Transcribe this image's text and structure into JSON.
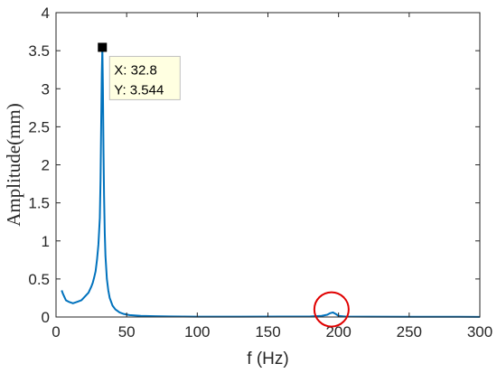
{
  "chart_data": {
    "type": "line",
    "xlabel": "f (Hz)",
    "ylabel": "Amplitude(mm)",
    "xlim": [
      0,
      300
    ],
    "ylim": [
      0,
      4
    ],
    "x_ticks": [
      0,
      50,
      100,
      150,
      200,
      250,
      300
    ],
    "y_ticks": [
      0,
      0.5,
      1,
      1.5,
      2,
      2.5,
      3,
      3.5,
      4
    ],
    "y_tick_labels": [
      "0",
      "0.5",
      "1",
      "1.5",
      "2",
      "2.5",
      "3",
      "3.5",
      "4"
    ],
    "grid": false,
    "line_color": "#0072BD",
    "series": [
      {
        "x": [
          4,
          5,
          7,
          9,
          12,
          15,
          18,
          21,
          23,
          25,
          26,
          27,
          28,
          29,
          30,
          31,
          31.5,
          32,
          32.4,
          32.8,
          33.2,
          33.6,
          34,
          34.5,
          35,
          36,
          37,
          38,
          40,
          42,
          45,
          48,
          52,
          60,
          70,
          80,
          100,
          130,
          160,
          180,
          188,
          192,
          194,
          196,
          198,
          200,
          205,
          220,
          250,
          300
        ],
        "y": [
          0.35,
          0.3,
          0.22,
          0.2,
          0.18,
          0.2,
          0.22,
          0.28,
          0.32,
          0.4,
          0.45,
          0.52,
          0.6,
          0.75,
          0.95,
          1.3,
          1.8,
          2.6,
          3.2,
          3.544,
          3.0,
          2.2,
          1.6,
          1.1,
          0.8,
          0.5,
          0.35,
          0.25,
          0.15,
          0.1,
          0.06,
          0.04,
          0.025,
          0.015,
          0.01,
          0.008,
          0.005,
          0.005,
          0.006,
          0.008,
          0.015,
          0.03,
          0.05,
          0.06,
          0.04,
          0.015,
          0.006,
          0.004,
          0.003,
          0.002
        ]
      }
    ],
    "datatip": {
      "x_text": "X: 32.8",
      "y_text": "Y: 3.544",
      "x": 32.8,
      "y": 3.544
    },
    "highlight_circle": {
      "cx": 195,
      "cy": 0.1,
      "color": "#e00000"
    }
  }
}
